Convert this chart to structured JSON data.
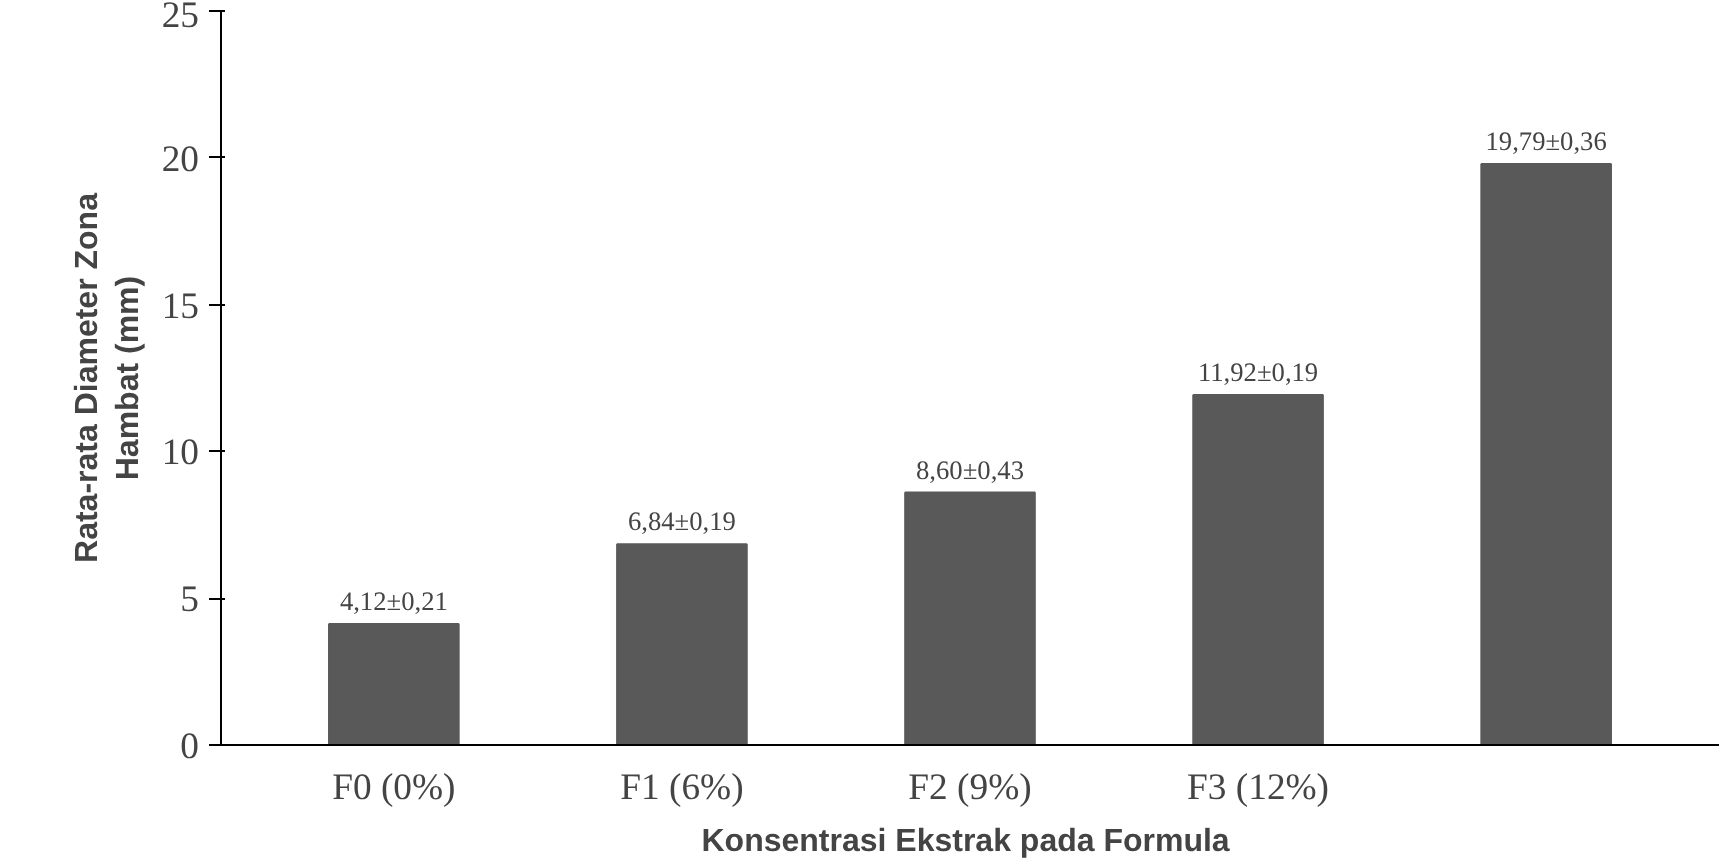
{
  "chart_data": {
    "type": "bar",
    "categories": [
      "F0 (0%)",
      "F1 (6%)",
      "F2 (9%)",
      "F3 (12%)",
      null
    ],
    "values": [
      4.12,
      6.84,
      8.6,
      11.92,
      19.79
    ],
    "value_labels": [
      "4,12±0,21",
      "6,84±0,19",
      "8,60±0,43",
      "11,92±0,19",
      "19,79±0,36"
    ],
    "color": "#595959",
    "ylim": [
      0,
      25
    ],
    "yticks": [
      0,
      5,
      10,
      15,
      20,
      25
    ],
    "ylabel": "Rata-rata Diameter Zona\nHambat (mm)",
    "xlabel": "Konsentrasi  Ekstrak pada Formula",
    "grid": false
  }
}
